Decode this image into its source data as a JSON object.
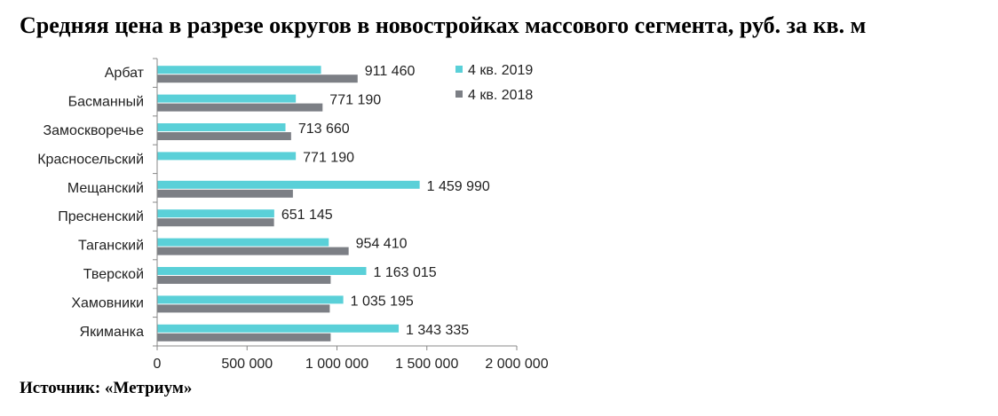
{
  "title": "Средняя цена в разрезе округов в новостройках массового сегмента, руб. за кв. м",
  "source": "Источник: «Метриум»",
  "colors": {
    "series_2019": "#5ad0d8",
    "series_2018": "#7c7f85"
  },
  "chart_data": {
    "type": "bar",
    "orientation": "horizontal",
    "categories": [
      "Арбат",
      "Басманный",
      "Замоскворечье",
      "Красносельский",
      "Мещанский",
      "Пресненский",
      "Таганский",
      "Тверской",
      "Хамовники",
      "Якиманка"
    ],
    "series": [
      {
        "name": "4 кв. 2019",
        "values": [
          911460,
          771190,
          713660,
          771190,
          1459990,
          651145,
          954410,
          1163015,
          1035195,
          1343335
        ]
      },
      {
        "name": "4 кв. 2018",
        "values": [
          1115000,
          920000,
          745000,
          null,
          755000,
          650000,
          1065000,
          965000,
          960000,
          965000
        ]
      }
    ],
    "data_labels": [
      "911 460",
      "771 190",
      "713 660",
      "771 190",
      "1 459 990",
      "651 145",
      "954 410",
      "1 163 015",
      "1 035 195",
      "1 343 335"
    ],
    "x_ticks": [
      0,
      500000,
      1000000,
      1500000,
      2000000
    ],
    "x_tick_labels": [
      "0",
      "500 000",
      "1 000 000",
      "1 500 000",
      "2 000 000"
    ],
    "xlim": [
      0,
      2000000
    ],
    "legend": "top-right",
    "grid": false
  }
}
